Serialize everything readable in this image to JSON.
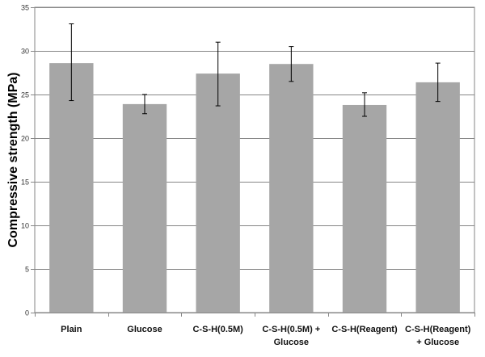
{
  "chart_data": {
    "type": "bar",
    "title": "",
    "xlabel": "",
    "ylabel": "Compressive strength (MPa)",
    "ylim": [
      0,
      35
    ],
    "yticks": [
      0,
      5,
      10,
      15,
      20,
      25,
      30,
      35
    ],
    "grid": "horizontal",
    "legend": "none",
    "bar_color": "#a6a6a6",
    "error_bar_color": "#000000",
    "categories": [
      [
        "Plain"
      ],
      [
        "Glucose"
      ],
      [
        "C-S-H(0.5M)"
      ],
      [
        "C-S-H(0.5M) +",
        "Glucose"
      ],
      [
        "C-S-H(Reagent)"
      ],
      [
        "C-S-H(Reagent)",
        "+ Glucose"
      ]
    ],
    "values": [
      28.6,
      23.9,
      27.4,
      28.5,
      23.8,
      26.4
    ],
    "error_low": [
      24.3,
      22.8,
      23.7,
      26.5,
      22.5,
      24.2
    ],
    "error_high": [
      33.1,
      25.0,
      31.0,
      30.5,
      25.2,
      28.6
    ]
  }
}
